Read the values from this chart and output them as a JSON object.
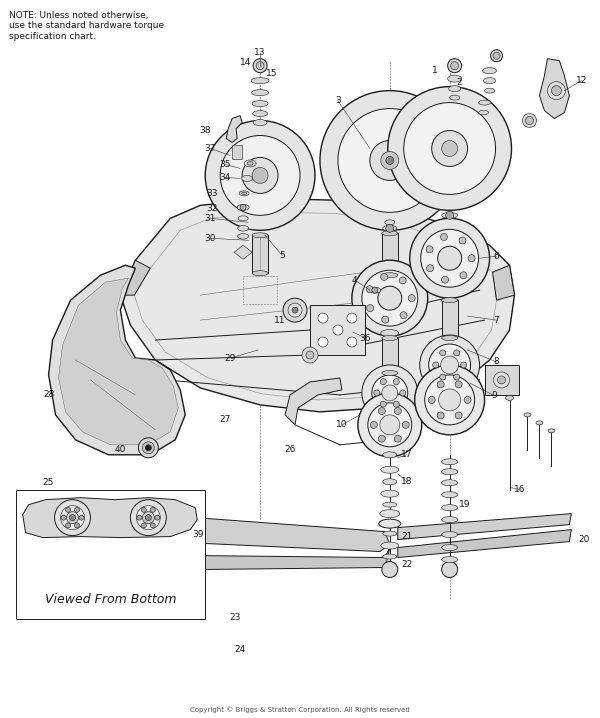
{
  "note_text": "NOTE: Unless noted otherwise,\nuse the standard hardware torque\nspecification chart.",
  "viewed_from_bottom": "Viewed From Bottom",
  "copyright": "Copyright © Briggs & Stratton Corporation. All Rights reserved",
  "bg_color": "#ffffff",
  "lc": "#1a1a1a",
  "fig_width": 6.0,
  "fig_height": 7.18,
  "dpi": 100
}
